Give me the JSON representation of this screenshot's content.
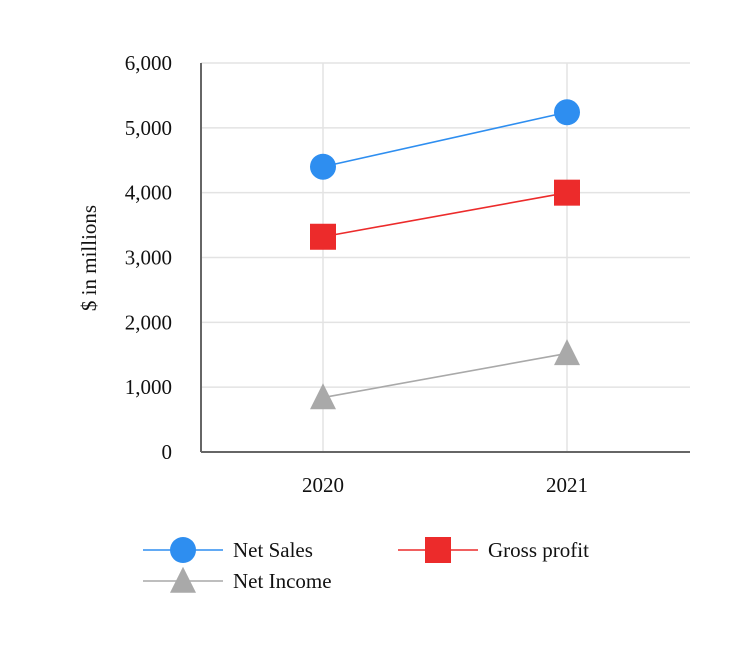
{
  "chart_data": {
    "type": "line",
    "categories": [
      "2020",
      "2021"
    ],
    "ylabel": "$ in millions",
    "ylim": [
      0,
      6000
    ],
    "yticks": [
      0,
      1000,
      2000,
      3000,
      4000,
      5000,
      6000
    ],
    "ytick_labels": [
      "0",
      "1,000",
      "2,000",
      "3,000",
      "4,000",
      "5,000",
      "6,000"
    ],
    "grid": true,
    "legend_position": "bottom",
    "series": [
      {
        "name": "Net Sales",
        "values": [
          4400,
          5240
        ],
        "color": "#2e8ef0",
        "marker": "circle"
      },
      {
        "name": "Gross profit",
        "values": [
          3320,
          4000
        ],
        "color": "#ec2b2b",
        "marker": "square"
      },
      {
        "name": "Net Income",
        "values": [
          840,
          1520
        ],
        "color": "#a9a9a9",
        "marker": "triangle"
      }
    ]
  }
}
